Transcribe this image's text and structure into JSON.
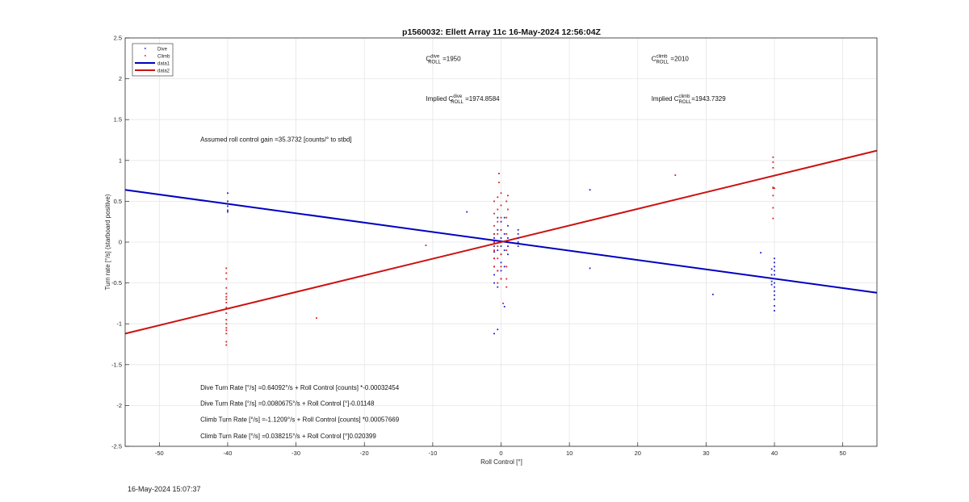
{
  "footer_timestamp": "16-May-2024 15:07:37",
  "chart_data": {
    "type": "scatter",
    "title": "p1560032: Ellett Array 11c 16-May-2024 12:56:04Z",
    "xlabel": "Roll Control [°]",
    "ylabel": "Turn rate [°/s] (starboard positive)",
    "xlim": [
      -55,
      55
    ],
    "ylim": [
      -2.5,
      2.5
    ],
    "xticks": [
      -50,
      -40,
      -30,
      -20,
      -10,
      0,
      10,
      20,
      30,
      40,
      50
    ],
    "yticks": [
      -2.5,
      -2,
      -1.5,
      -1,
      -0.5,
      0,
      0.5,
      1,
      1.5,
      2,
      2.5
    ],
    "grid": true,
    "legend": {
      "placement": "top-left",
      "entries": [
        "Dive",
        "Climb",
        "data1",
        "data2"
      ]
    },
    "colors": {
      "dive": "#1f1fcc",
      "climb": "#d42020",
      "data1": "#0000c0",
      "data2": "#cc1111",
      "grid": "#e6e6e6",
      "axis": "#262626"
    },
    "series": [
      {
        "name": "Dive",
        "kind": "points",
        "color": "#1f1fcc",
        "points": [
          [
            -40,
            0.6
          ],
          [
            -40,
            0.5
          ],
          [
            -40,
            0.44
          ],
          [
            -40,
            0.39
          ],
          [
            -40,
            0.37
          ],
          [
            -1,
            0.1
          ],
          [
            -1,
            0.05
          ],
          [
            -1,
            0.0
          ],
          [
            -1,
            -0.05
          ],
          [
            -1,
            -0.12
          ],
          [
            -1,
            -0.2
          ],
          [
            -1,
            -0.3
          ],
          [
            -1,
            -0.4
          ],
          [
            -1,
            -0.5
          ],
          [
            -0.5,
            0.3
          ],
          [
            -0.5,
            0.15
          ],
          [
            -0.5,
            -0.1
          ],
          [
            -0.5,
            -0.35
          ],
          [
            -0.5,
            -0.55
          ],
          [
            0,
            0.25
          ],
          [
            0,
            0.15
          ],
          [
            0,
            0.05
          ],
          [
            0,
            -0.05
          ],
          [
            0,
            -0.15
          ],
          [
            0,
            -0.25
          ],
          [
            0,
            -0.35
          ],
          [
            0,
            -0.45
          ],
          [
            0.5,
            0.3
          ],
          [
            0.5,
            0.1
          ],
          [
            0.5,
            -0.1
          ],
          [
            0.5,
            -0.3
          ],
          [
            1,
            0.2
          ],
          [
            1,
            0.05
          ],
          [
            1,
            -0.05
          ],
          [
            1,
            -0.15
          ],
          [
            2.5,
            0.15
          ],
          [
            2.5,
            0.1
          ],
          [
            2.5,
            0.05
          ],
          [
            2.5,
            0.0
          ],
          [
            2.5,
            -0.05
          ],
          [
            -1,
            -1.12
          ],
          [
            -0.5,
            -1.07
          ],
          [
            0.5,
            -0.79
          ],
          [
            -5,
            0.37
          ],
          [
            13,
            0.64
          ],
          [
            13,
            -0.32
          ],
          [
            31,
            -0.64
          ],
          [
            38,
            -0.13
          ],
          [
            40,
            -0.2
          ],
          [
            40,
            -0.25
          ],
          [
            40,
            -0.3
          ],
          [
            40,
            -0.35
          ],
          [
            40,
            -0.4
          ],
          [
            40,
            -0.45
          ],
          [
            40,
            -0.5
          ],
          [
            40,
            -0.55
          ],
          [
            40,
            -0.6
          ],
          [
            40,
            -0.65
          ],
          [
            40,
            -0.7
          ],
          [
            40,
            -0.78
          ],
          [
            40,
            -0.84
          ],
          [
            39.6,
            -0.33
          ],
          [
            39.6,
            -0.4
          ],
          [
            39.6,
            -0.48
          ],
          [
            39.6,
            -0.52
          ]
        ]
      },
      {
        "name": "Climb",
        "kind": "points",
        "color": "#d42020",
        "points": [
          [
            -40.2,
            -0.32
          ],
          [
            -40.2,
            -0.38
          ],
          [
            -40.2,
            -0.45
          ],
          [
            -40.2,
            -0.56
          ],
          [
            -40.2,
            -0.63
          ],
          [
            -40.2,
            -0.67
          ],
          [
            -40.2,
            -0.7
          ],
          [
            -40.2,
            -0.74
          ],
          [
            -40.2,
            -0.8
          ],
          [
            -40.2,
            -0.87
          ],
          [
            -40.2,
            -0.95
          ],
          [
            -40.2,
            -1.0
          ],
          [
            -40.2,
            -1.05
          ],
          [
            -40.2,
            -1.08
          ],
          [
            -40.2,
            -1.12
          ],
          [
            -40.2,
            -1.22
          ],
          [
            -40.2,
            -1.26
          ],
          [
            -27,
            -0.93
          ],
          [
            -11,
            -0.04
          ],
          [
            -1,
            0.5
          ],
          [
            -1,
            0.35
          ],
          [
            -1,
            0.2
          ],
          [
            -1,
            0.1
          ],
          [
            -1,
            0.0
          ],
          [
            -1,
            -0.1
          ],
          [
            -1,
            -0.2
          ],
          [
            -1,
            -0.3
          ],
          [
            -0.5,
            0.55
          ],
          [
            -0.5,
            0.4
          ],
          [
            -0.5,
            0.25
          ],
          [
            -0.5,
            0.1
          ],
          [
            -0.5,
            -0.05
          ],
          [
            -0.5,
            -0.2
          ],
          [
            -0.5,
            -0.35
          ],
          [
            -0.5,
            -0.5
          ],
          [
            0,
            0.6
          ],
          [
            0,
            0.45
          ],
          [
            0,
            0.3
          ],
          [
            0,
            0.15
          ],
          [
            0,
            0.0
          ],
          [
            0,
            -0.15
          ],
          [
            0,
            -0.3
          ],
          [
            0,
            -0.45
          ],
          [
            -0.3,
            0.84
          ],
          [
            -0.3,
            0.73
          ],
          [
            0.3,
            -0.75
          ],
          [
            0.8,
            0.5
          ],
          [
            0.8,
            0.3
          ],
          [
            0.8,
            0.1
          ],
          [
            0.8,
            -0.1
          ],
          [
            0.8,
            -0.3
          ],
          [
            0.8,
            -0.45
          ],
          [
            0.8,
            -0.55
          ],
          [
            1,
            0.57
          ],
          [
            1,
            0.4
          ],
          [
            25.5,
            0.82
          ],
          [
            39.8,
            1.04
          ],
          [
            39.8,
            0.98
          ],
          [
            39.8,
            0.91
          ],
          [
            39.8,
            0.66
          ],
          [
            39.8,
            0.67
          ],
          [
            39.8,
            0.57
          ],
          [
            39.8,
            0.42
          ],
          [
            39.8,
            0.29
          ],
          [
            40,
            0.66
          ]
        ]
      },
      {
        "name": "data1",
        "kind": "line",
        "color": "#0000c0",
        "x": [
          -55,
          55
        ],
        "y": [
          0.64,
          -0.62
        ]
      },
      {
        "name": "data2",
        "kind": "line",
        "color": "#cc1111",
        "x": [
          -55,
          55
        ],
        "y": [
          -1.12,
          1.12
        ]
      }
    ],
    "annotations": [
      {
        "id": "c-dive",
        "x": -11,
        "y": 2.22,
        "parts": [
          {
            "t": "C"
          },
          {
            "t": "dive",
            "sup": true
          },
          {
            "t": "ROLL",
            "sub": true
          },
          {
            "t": " =1950"
          }
        ]
      },
      {
        "id": "c-climb",
        "x": 22,
        "y": 2.22,
        "parts": [
          {
            "t": "C"
          },
          {
            "t": "climb",
            "sup": true
          },
          {
            "t": "ROLL",
            "sub": true
          },
          {
            "t": " =2010"
          }
        ]
      },
      {
        "id": "implied-dive",
        "x": -11,
        "y": 1.73,
        "parts": [
          {
            "t": "Implied C"
          },
          {
            "t": "dive",
            "sup": true
          },
          {
            "t": "ROLL",
            "sub": true
          },
          {
            "t": " =1974.8584"
          }
        ]
      },
      {
        "id": "implied-climb",
        "x": 22,
        "y": 1.73,
        "parts": [
          {
            "t": "Implied C"
          },
          {
            "t": "climb",
            "sup": true
          },
          {
            "t": "ROLL",
            "sub": true
          },
          {
            "t": "=1943.7329"
          }
        ]
      },
      {
        "id": "gain",
        "x": -44,
        "y": 1.23,
        "parts": [
          {
            "t": "Assumed roll control gain =35.3732 [counts/° to stbd]"
          }
        ]
      },
      {
        "id": "fit1",
        "x": -44,
        "y": -1.81,
        "parts": [
          {
            "t": "Dive Turn Rate [°/s] =0.64092°/s + Roll Control [counts] *-0.00032454"
          }
        ]
      },
      {
        "id": "fit2",
        "x": -44,
        "y": -2.0,
        "parts": [
          {
            "t": "Dive Turn Rate [°/s] =0.0080675°/s + Roll Control [°]-0.01148"
          }
        ]
      },
      {
        "id": "fit3",
        "x": -44,
        "y": -2.2,
        "parts": [
          {
            "t": "Climb Turn Rate [°/s] =-1.1209°/s + Roll Control [counts] *0.00057669"
          }
        ]
      },
      {
        "id": "fit4",
        "x": -44,
        "y": -2.4,
        "parts": [
          {
            "t": "Climb Turn Rate [°/s] =0.038215°/s + Roll Control [°]0.020399"
          }
        ]
      }
    ]
  }
}
